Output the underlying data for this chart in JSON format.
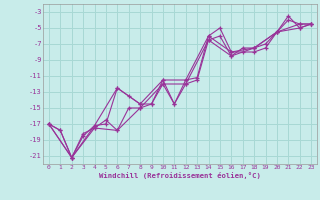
{
  "xlabel": "Windchill (Refroidissement éolien,°C)",
  "background_color": "#c8ecea",
  "grid_color": "#a8d8d4",
  "line_color": "#993399",
  "xlim": [
    -0.5,
    23.5
  ],
  "ylim": [
    -22,
    -2
  ],
  "xticks": [
    0,
    1,
    2,
    3,
    4,
    5,
    6,
    7,
    8,
    9,
    10,
    11,
    12,
    13,
    14,
    15,
    16,
    17,
    18,
    19,
    20,
    21,
    22,
    23
  ],
  "yticks": [
    -3,
    -5,
    -7,
    -9,
    -11,
    -13,
    -15,
    -17,
    -19,
    -21
  ],
  "series1": [
    [
      0,
      -17
    ],
    [
      1,
      -17.8
    ],
    [
      2,
      -21.2
    ],
    [
      3,
      -18.5
    ],
    [
      4,
      -17.2
    ],
    [
      5,
      -17.0
    ],
    [
      6,
      -12.5
    ],
    [
      7,
      -13.5
    ],
    [
      8,
      -14.5
    ],
    [
      9,
      -14.5
    ],
    [
      10,
      -11.5
    ],
    [
      11,
      -14.5
    ],
    [
      12,
      -11.5
    ],
    [
      13,
      -11.2
    ],
    [
      14,
      -6.0
    ],
    [
      15,
      -5.0
    ],
    [
      16,
      -8.0
    ],
    [
      17,
      -8.0
    ],
    [
      18,
      -8.0
    ],
    [
      19,
      -7.5
    ],
    [
      20,
      -5.5
    ],
    [
      21,
      -3.5
    ],
    [
      22,
      -5.0
    ],
    [
      23,
      -4.5
    ]
  ],
  "series2": [
    [
      0,
      -17
    ],
    [
      1,
      -17.8
    ],
    [
      2,
      -21.2
    ],
    [
      3,
      -18.2
    ],
    [
      4,
      -17.5
    ],
    [
      5,
      -16.5
    ],
    [
      6,
      -17.8
    ],
    [
      7,
      -15.0
    ],
    [
      8,
      -15.0
    ],
    [
      9,
      -14.5
    ],
    [
      10,
      -12.0
    ],
    [
      11,
      -14.5
    ],
    [
      12,
      -12.0
    ],
    [
      13,
      -11.5
    ],
    [
      14,
      -6.5
    ],
    [
      15,
      -6.0
    ],
    [
      16,
      -8.5
    ],
    [
      17,
      -7.5
    ],
    [
      18,
      -7.5
    ],
    [
      19,
      -7.0
    ],
    [
      20,
      -5.5
    ],
    [
      21,
      -4.0
    ],
    [
      22,
      -4.5
    ],
    [
      23,
      -4.5
    ]
  ],
  "series3": [
    [
      0,
      -17
    ],
    [
      2,
      -21.2
    ],
    [
      4,
      -17.2
    ],
    [
      6,
      -12.5
    ],
    [
      8,
      -14.5
    ],
    [
      10,
      -11.5
    ],
    [
      12,
      -11.5
    ],
    [
      14,
      -6.0
    ],
    [
      16,
      -8.0
    ],
    [
      18,
      -7.5
    ],
    [
      20,
      -5.5
    ],
    [
      22,
      -5.0
    ],
    [
      23,
      -4.5
    ]
  ],
  "series4": [
    [
      0,
      -17
    ],
    [
      2,
      -21.2
    ],
    [
      4,
      -17.5
    ],
    [
      6,
      -17.8
    ],
    [
      8,
      -15.0
    ],
    [
      10,
      -12.0
    ],
    [
      12,
      -12.0
    ],
    [
      14,
      -6.5
    ],
    [
      16,
      -8.5
    ],
    [
      18,
      -7.5
    ],
    [
      20,
      -5.5
    ],
    [
      22,
      -4.5
    ],
    [
      23,
      -4.5
    ]
  ]
}
